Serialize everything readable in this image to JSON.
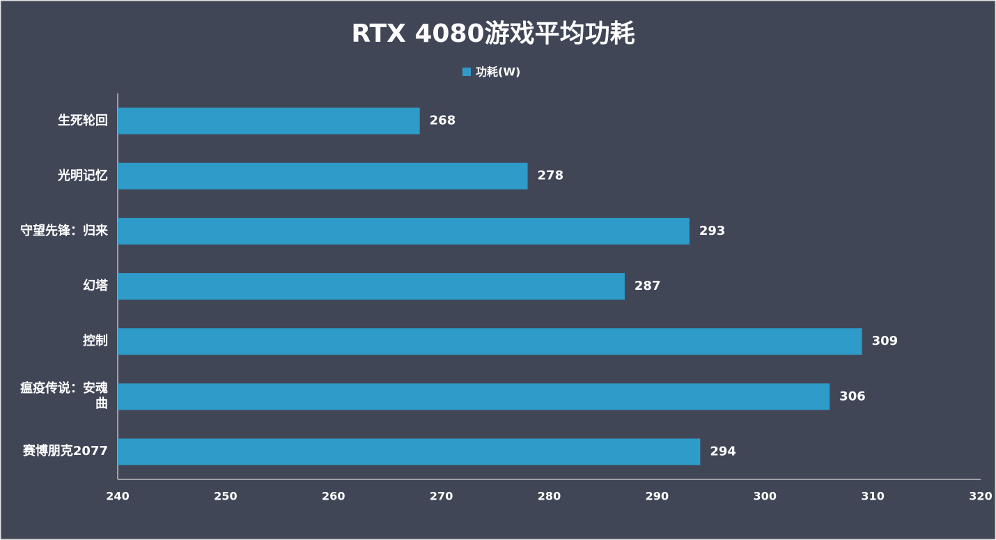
{
  "chart_data": {
    "type": "bar",
    "orientation": "horizontal",
    "title": "RTX 4080游戏平均功耗",
    "categories": [
      "生死轮回",
      "光明记忆",
      "守望先锋：归来",
      "幻塔",
      "控制",
      "瘟疫传说：安魂曲",
      "赛博朋克2077"
    ],
    "series": [
      {
        "name": "功耗(W)",
        "color": "#2e9bc8",
        "values": [
          268,
          278,
          293,
          287,
          309,
          306,
          294
        ]
      }
    ],
    "xlim": [
      240,
      320
    ],
    "xticks": [
      240,
      250,
      260,
      270,
      280,
      290,
      300,
      310,
      320
    ],
    "grid": false,
    "legend": "top"
  }
}
